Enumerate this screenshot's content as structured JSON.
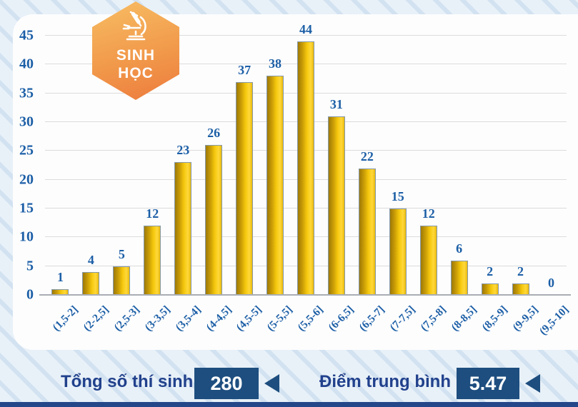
{
  "badge": {
    "line1": "SINH",
    "line2": "HỌC",
    "icon": "microscope-icon",
    "gradient_top": "#f8bd63",
    "gradient_bottom": "#ed7b3d"
  },
  "chart_data": {
    "type": "bar",
    "categories": [
      "(1,5-2]",
      "(2-2,5]",
      "(2,5-3]",
      "(3-3,5]",
      "(3,5-4]",
      "(4-4,5]",
      "(4,5-5]",
      "(5-5,5]",
      "(5,5-6]",
      "(6-6,5]",
      "(6,5-7]",
      "(7-7,5]",
      "(7,5-8]",
      "(8-8,5]",
      "(8,5-9]",
      "(9-9,5]",
      "(9,5-10]"
    ],
    "values": [
      1,
      4,
      5,
      12,
      23,
      26,
      37,
      38,
      44,
      31,
      22,
      15,
      12,
      6,
      2,
      2,
      0
    ],
    "title": "",
    "xlabel": "",
    "ylabel": "",
    "ylim": [
      0,
      45
    ],
    "ytick_step": 5,
    "grid": true,
    "legend": "none",
    "bar_gradient": [
      "#9e7a08",
      "#f6c90e",
      "#ffd83a"
    ],
    "bar_border_color": "#8599aa",
    "label_color": "#1d5fa6"
  },
  "footer": {
    "total_label": "Tổng số thí sinh",
    "total_value": "280",
    "average_label": "Điểm trung bình",
    "average_value": "5.47"
  },
  "colors": {
    "chart_text_blue": "#1d5fa6",
    "footer_navy": "#21418c",
    "value_box_navy": "#1d4e7f",
    "bottom_strip": "#24478a",
    "background_base": "#e8f0f8",
    "background_stripe": "#d3e2f1"
  }
}
